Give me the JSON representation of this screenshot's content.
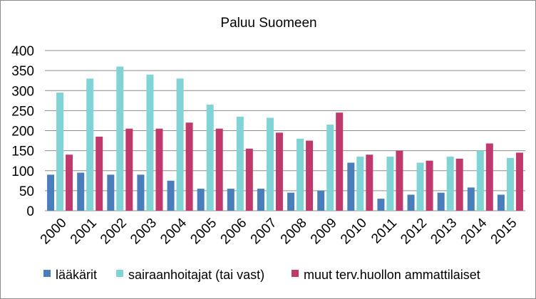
{
  "chart_data": {
    "type": "bar",
    "title": "Paluu Suomeen",
    "xlabel": "",
    "ylabel": "",
    "ylim": [
      0,
      400
    ],
    "yticks": [
      0,
      50,
      100,
      150,
      200,
      250,
      300,
      350,
      400
    ],
    "grid": true,
    "legend_position": "bottom",
    "categories": [
      "2000",
      "2001",
      "2002",
      "2003",
      "2004",
      "2005",
      "2006",
      "2007",
      "2008",
      "2009",
      "2010",
      "2011",
      "2012",
      "2013",
      "2014",
      "2015"
    ],
    "series": [
      {
        "name": "lääkärit",
        "color": "#4a7ebb",
        "values": [
          90,
          95,
          90,
          90,
          75,
          55,
          55,
          55,
          45,
          50,
          120,
          30,
          40,
          45,
          58,
          40
        ]
      },
      {
        "name": "sairaanhoitajat (tai vast)",
        "color": "#80d4d6",
        "values": [
          295,
          330,
          360,
          340,
          330,
          265,
          235,
          232,
          180,
          215,
          135,
          135,
          120,
          135,
          150,
          132
        ]
      },
      {
        "name": "muut terv.huollon ammattilaiset",
        "color": "#c0396d",
        "values": [
          140,
          185,
          205,
          205,
          220,
          205,
          155,
          195,
          175,
          245,
          140,
          150,
          125,
          130,
          168,
          145
        ]
      }
    ]
  }
}
